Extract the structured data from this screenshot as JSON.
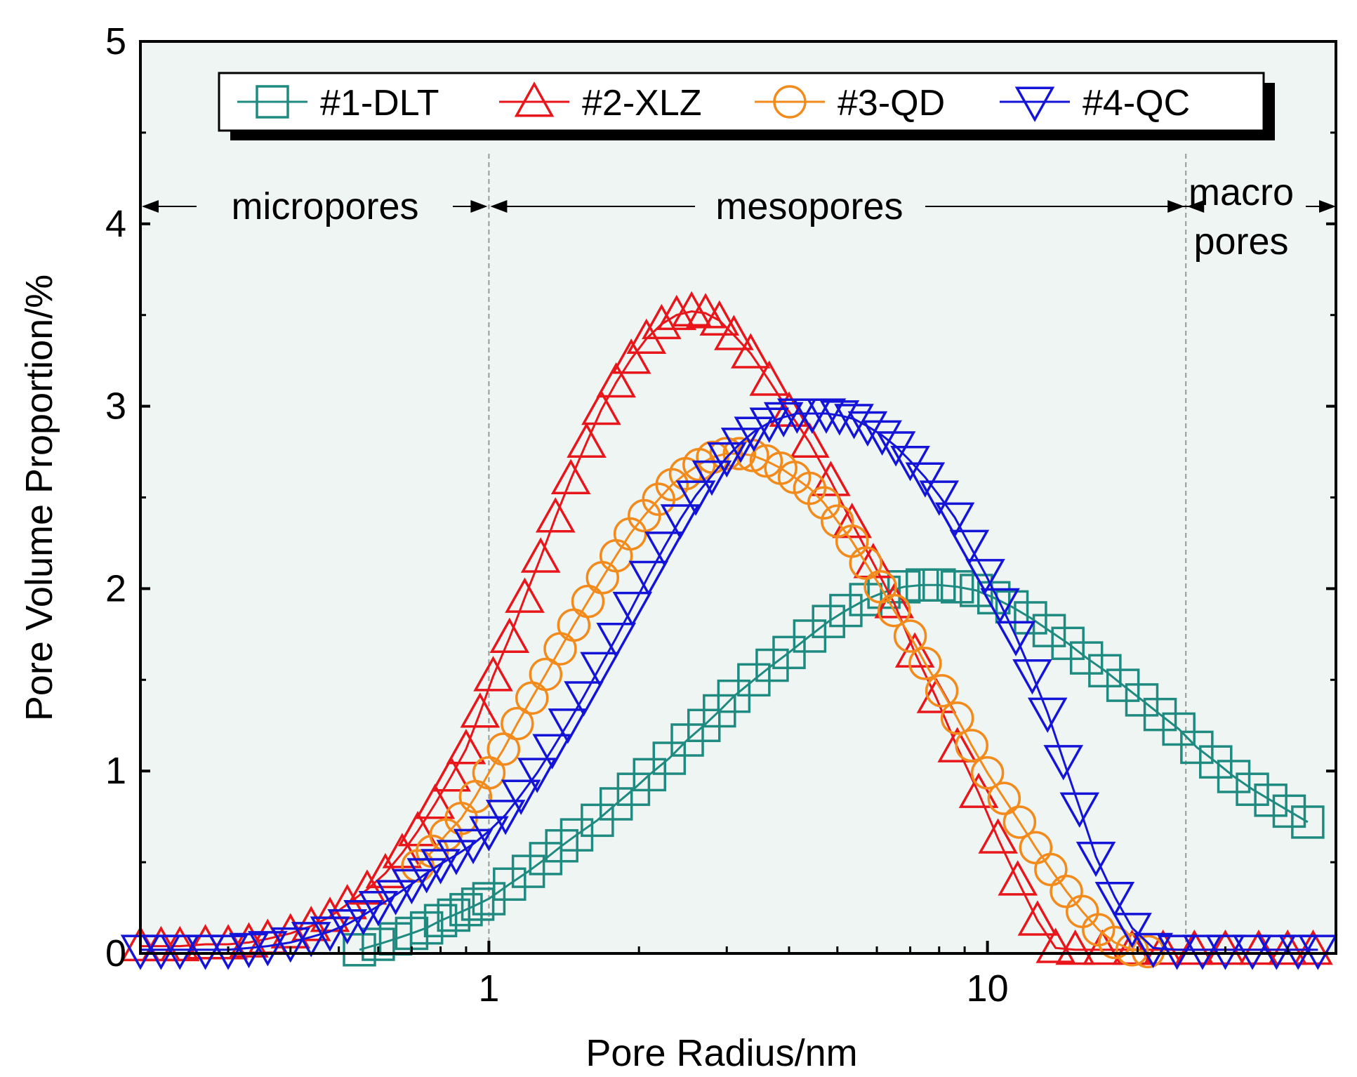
{
  "chart_data": {
    "type": "scatter",
    "xlabel": "Pore Radius/nm",
    "ylabel": "Pore Volume Proportion/%",
    "xscale": "log",
    "xlim": [
      0.2,
      50
    ],
    "ylim": [
      0,
      5
    ],
    "x_ticks": [
      1,
      10
    ],
    "x_tick_labels": [
      "1",
      "10"
    ],
    "y_ticks": [
      0,
      1,
      2,
      3,
      4,
      5
    ],
    "y_tick_labels": [
      "0",
      "1",
      "2",
      "3",
      "4",
      "5"
    ],
    "legend_position": "top-center",
    "background_color": "#eef5f3",
    "regions": {
      "boundaries": [
        1,
        25
      ],
      "labels": [
        "micropores",
        "mesopores",
        "macro",
        "pores"
      ]
    },
    "series": [
      {
        "name": "#1-DLT",
        "color": "#1f8a80",
        "marker": "square",
        "x": [
          0.55,
          0.6,
          0.65,
          0.7,
          0.75,
          0.8,
          0.85,
          0.9,
          0.95,
          1.0,
          1.1,
          1.2,
          1.3,
          1.4,
          1.5,
          1.65,
          1.8,
          1.95,
          2.1,
          2.3,
          2.5,
          2.7,
          2.9,
          3.1,
          3.4,
          3.7,
          4.0,
          4.4,
          4.8,
          5.2,
          5.7,
          6.2,
          6.8,
          7.4,
          8.0,
          8.7,
          9.5,
          10.3,
          11.2,
          12.2,
          13.3,
          14.5,
          15.8,
          17.2,
          18.7,
          20.4,
          22.2,
          24.2,
          26.3,
          28.7,
          31.2,
          34.0,
          37.0,
          40.3,
          43.9
        ],
        "values": [
          0.02,
          0.05,
          0.08,
          0.11,
          0.14,
          0.18,
          0.21,
          0.24,
          0.27,
          0.3,
          0.38,
          0.45,
          0.52,
          0.59,
          0.65,
          0.73,
          0.82,
          0.9,
          0.98,
          1.07,
          1.17,
          1.25,
          1.33,
          1.41,
          1.5,
          1.58,
          1.65,
          1.74,
          1.82,
          1.88,
          1.94,
          1.98,
          2.01,
          2.02,
          2.02,
          2.01,
          1.99,
          1.95,
          1.9,
          1.84,
          1.77,
          1.7,
          1.62,
          1.55,
          1.47,
          1.39,
          1.31,
          1.23,
          1.13,
          1.05,
          0.97,
          0.9,
          0.84,
          0.78,
          0.72
        ]
      },
      {
        "name": "#2-XLZ",
        "color": "#e8161b",
        "marker": "triangle-up",
        "x": [
          0.2,
          0.22,
          0.24,
          0.27,
          0.3,
          0.33,
          0.36,
          0.4,
          0.44,
          0.48,
          0.52,
          0.57,
          0.62,
          0.67,
          0.72,
          0.78,
          0.84,
          0.9,
          0.96,
          1.02,
          1.1,
          1.18,
          1.27,
          1.36,
          1.46,
          1.57,
          1.68,
          1.8,
          1.93,
          2.07,
          2.22,
          2.38,
          2.55,
          2.72,
          2.9,
          3.1,
          3.35,
          3.65,
          4.0,
          4.4,
          4.85,
          5.35,
          5.9,
          6.5,
          7.15,
          7.9,
          8.7,
          9.6,
          10.5,
          11.5,
          12.6,
          13.7,
          15.0,
          17.0,
          19.5,
          22.5,
          26.0,
          30.0,
          35.0,
          40.0,
          45.0
        ],
        "values": [
          0.04,
          0.04,
          0.04,
          0.05,
          0.05,
          0.06,
          0.08,
          0.11,
          0.15,
          0.2,
          0.27,
          0.35,
          0.44,
          0.55,
          0.67,
          0.82,
          0.97,
          1.12,
          1.32,
          1.52,
          1.73,
          1.95,
          2.17,
          2.39,
          2.6,
          2.8,
          2.98,
          3.13,
          3.26,
          3.37,
          3.45,
          3.5,
          3.52,
          3.51,
          3.47,
          3.39,
          3.29,
          3.14,
          2.97,
          2.8,
          2.59,
          2.36,
          2.14,
          1.92,
          1.65,
          1.4,
          1.13,
          0.88,
          0.63,
          0.4,
          0.18,
          0.03,
          0.02,
          0.02,
          0.02,
          0.02,
          0.02,
          0.02,
          0.02,
          0.02,
          0.02
        ]
      },
      {
        "name": "#3-QD",
        "color": "#f28a1c",
        "marker": "circle",
        "x": [
          0.72,
          0.77,
          0.82,
          0.88,
          0.94,
          1.0,
          1.07,
          1.14,
          1.22,
          1.3,
          1.39,
          1.48,
          1.58,
          1.69,
          1.8,
          1.92,
          2.05,
          2.19,
          2.33,
          2.48,
          2.64,
          2.81,
          2.99,
          3.18,
          3.38,
          3.6,
          3.85,
          4.1,
          4.4,
          4.7,
          5.0,
          5.35,
          5.7,
          6.1,
          6.5,
          7.0,
          7.5,
          8.1,
          8.7,
          9.3,
          10.0,
          10.8,
          11.6,
          12.5,
          13.4,
          14.4,
          15.5,
          16.7,
          18.0,
          19.5,
          21.0
        ],
        "values": [
          0.48,
          0.56,
          0.65,
          0.74,
          0.86,
          0.99,
          1.12,
          1.26,
          1.4,
          1.53,
          1.67,
          1.8,
          1.93,
          2.06,
          2.18,
          2.3,
          2.4,
          2.49,
          2.57,
          2.63,
          2.68,
          2.72,
          2.74,
          2.74,
          2.73,
          2.7,
          2.66,
          2.61,
          2.55,
          2.47,
          2.37,
          2.26,
          2.14,
          2.01,
          1.88,
          1.74,
          1.59,
          1.44,
          1.29,
          1.14,
          0.99,
          0.85,
          0.72,
          0.58,
          0.46,
          0.34,
          0.23,
          0.13,
          0.06,
          0.02,
          0.01
        ]
      },
      {
        "name": "#4-QC",
        "color": "#1414d8",
        "marker": "triangle-down",
        "x": [
          0.2,
          0.22,
          0.24,
          0.27,
          0.3,
          0.33,
          0.36,
          0.4,
          0.44,
          0.48,
          0.52,
          0.56,
          0.6,
          0.65,
          0.7,
          0.75,
          0.8,
          0.86,
          0.93,
          1.0,
          1.08,
          1.16,
          1.25,
          1.34,
          1.44,
          1.55,
          1.67,
          1.8,
          1.94,
          2.09,
          2.25,
          2.42,
          2.6,
          2.8,
          3.0,
          3.2,
          3.4,
          3.65,
          3.9,
          4.15,
          4.45,
          4.75,
          5.05,
          5.4,
          5.75,
          6.15,
          6.55,
          7.0,
          7.5,
          8.0,
          8.6,
          9.2,
          9.9,
          10.6,
          11.4,
          12.3,
          13.2,
          14.2,
          15.3,
          16.5,
          18.0,
          19.5,
          21.5,
          24.0,
          27.0,
          30.0,
          34.0,
          38.0,
          42.0,
          46.0
        ],
        "values": [
          0.02,
          0.02,
          0.02,
          0.02,
          0.02,
          0.03,
          0.04,
          0.06,
          0.09,
          0.12,
          0.16,
          0.21,
          0.26,
          0.32,
          0.38,
          0.44,
          0.49,
          0.54,
          0.6,
          0.67,
          0.76,
          0.87,
          0.99,
          1.12,
          1.26,
          1.41,
          1.57,
          1.73,
          1.9,
          2.07,
          2.23,
          2.38,
          2.51,
          2.62,
          2.72,
          2.8,
          2.86,
          2.91,
          2.94,
          2.96,
          2.96,
          2.96,
          2.95,
          2.93,
          2.89,
          2.84,
          2.78,
          2.7,
          2.61,
          2.51,
          2.39,
          2.24,
          2.08,
          1.92,
          1.74,
          1.53,
          1.32,
          1.06,
          0.8,
          0.53,
          0.31,
          0.14,
          0.03,
          0.02,
          0.02,
          0.02,
          0.02,
          0.02,
          0.02,
          0.02
        ]
      }
    ]
  }
}
